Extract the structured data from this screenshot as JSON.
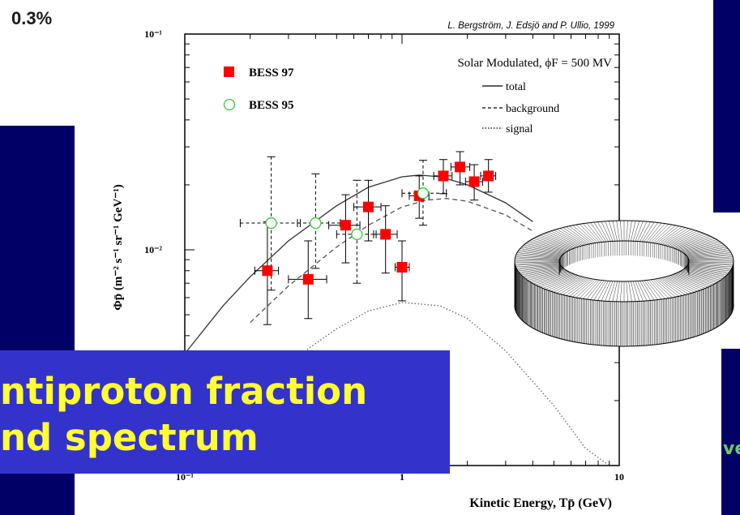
{
  "slide": {
    "top_left_label": "0.3%",
    "title_line_1": "ntiproton fraction",
    "title_line_2": "nd spectrum",
    "bottom_right_fragment": "ve"
  },
  "chart_data": {
    "type": "scatter",
    "citation": "L. Bergström, J. Edsjö and P. Ullio, 1999",
    "annotation": "Solar Modulated, ϕF = 500 MV",
    "ylabel": "Φp̄ (m⁻² s⁻¹ sr⁻¹ GeV⁻¹)",
    "xlabel": "Kinetic Energy, Tp̄ (GeV)",
    "x_scale": "log",
    "y_scale": "log",
    "xlim": [
      0.1,
      10
    ],
    "ylim": [
      0.001,
      0.1
    ],
    "x_ticks": [
      {
        "value": 0.1,
        "label": "10⁻¹"
      },
      {
        "value": 1,
        "label": "1"
      },
      {
        "value": 10,
        "label": "10"
      }
    ],
    "y_ticks": [
      {
        "value": 0.1,
        "label": "10⁻¹"
      },
      {
        "value": 0.01,
        "label": "10⁻²"
      }
    ],
    "legend": {
      "markers": [
        {
          "name": "BESS 97",
          "color": "#ff0000",
          "marker": "filled-square"
        },
        {
          "name": "BESS 95",
          "color": "#33cc33",
          "marker": "open-circle"
        }
      ],
      "lines": [
        {
          "name": "total",
          "style": "solid"
        },
        {
          "name": "background",
          "style": "dashed"
        },
        {
          "name": "signal",
          "style": "dotted"
        }
      ]
    },
    "series": [
      {
        "name": "BESS 97",
        "points": [
          {
            "x": 0.24,
            "y": 0.008,
            "xerr": [
              0.21,
              0.27
            ],
            "yerr": [
              0.0045,
              0.0135
            ]
          },
          {
            "x": 0.37,
            "y": 0.0073,
            "xerr": [
              0.3,
              0.45
            ],
            "yerr": [
              0.0048,
              0.011
            ]
          },
          {
            "x": 0.55,
            "y": 0.013,
            "xerr": [
              0.46,
              0.64
            ],
            "yerr": [
              0.0087,
              0.018
            ]
          },
          {
            "x": 0.7,
            "y": 0.0158,
            "xerr": [
              0.6,
              0.8
            ],
            "yerr": [
              0.011,
              0.021
            ]
          },
          {
            "x": 0.84,
            "y": 0.0118,
            "xerr": [
              0.74,
              0.95
            ],
            "yerr": [
              0.0078,
              0.016
            ]
          },
          {
            "x": 1.0,
            "y": 0.0083,
            "xerr": [
              0.93,
              1.08
            ],
            "yerr": [
              0.0058,
              0.011
            ]
          },
          {
            "x": 1.2,
            "y": 0.0178,
            "xerr": [
              1.08,
              1.33
            ],
            "yerr": [
              0.014,
              0.022
            ]
          },
          {
            "x": 1.55,
            "y": 0.022,
            "xerr": [
              1.4,
              1.7
            ],
            "yerr": [
              0.0182,
              0.0262
            ]
          },
          {
            "x": 1.85,
            "y": 0.0242,
            "xerr": [
              1.68,
              2.05
            ],
            "yerr": [
              0.02,
              0.0285
            ]
          },
          {
            "x": 2.15,
            "y": 0.0207,
            "xerr": [
              1.96,
              2.35
            ],
            "yerr": [
              0.017,
              0.0248
            ]
          },
          {
            "x": 2.5,
            "y": 0.022,
            "xerr": [
              2.3,
              2.7
            ],
            "yerr": [
              0.0185,
              0.0262
            ]
          }
        ]
      },
      {
        "name": "BESS 95",
        "points": [
          {
            "x": 0.25,
            "y": 0.0133,
            "xerr": [
              0.18,
              0.34
            ],
            "yerr": [
              0.0065,
              0.027
            ]
          },
          {
            "x": 0.4,
            "y": 0.0133,
            "xerr": [
              0.33,
              0.52
            ],
            "yerr": [
              0.0082,
              0.0225
            ]
          },
          {
            "x": 0.62,
            "y": 0.0118,
            "xerr": [
              0.5,
              0.76
            ],
            "yerr": [
              0.007,
              0.021
            ]
          },
          {
            "x": 1.25,
            "y": 0.0183,
            "xerr": [
              1.0,
              1.6
            ],
            "yerr": [
              0.013,
              0.026
            ]
          }
        ]
      }
    ],
    "curves": [
      {
        "name": "total",
        "style": "solid",
        "points": [
          [
            0.1,
            0.0033
          ],
          [
            0.15,
            0.0055
          ],
          [
            0.2,
            0.0075
          ],
          [
            0.3,
            0.011
          ],
          [
            0.5,
            0.016
          ],
          [
            0.7,
            0.0195
          ],
          [
            1.0,
            0.0218
          ],
          [
            1.2,
            0.0222
          ],
          [
            1.5,
            0.0218
          ],
          [
            2.0,
            0.02
          ],
          [
            3.0,
            0.0165
          ],
          [
            4.0,
            0.0135
          ]
        ]
      },
      {
        "name": "background",
        "style": "dashed",
        "points": [
          [
            0.2,
            0.0046
          ],
          [
            0.3,
            0.0068
          ],
          [
            0.5,
            0.0103
          ],
          [
            0.7,
            0.013
          ],
          [
            1.0,
            0.0158
          ],
          [
            1.3,
            0.017
          ],
          [
            1.6,
            0.0173
          ],
          [
            2.0,
            0.0168
          ],
          [
            3.0,
            0.0145
          ],
          [
            4.0,
            0.0122
          ]
        ]
      },
      {
        "name": "signal",
        "style": "dotted",
        "points": [
          [
            0.3,
            0.003
          ],
          [
            0.5,
            0.0043
          ],
          [
            0.7,
            0.0052
          ],
          [
            1.0,
            0.0057
          ],
          [
            1.5,
            0.0055
          ],
          [
            2.0,
            0.0048
          ],
          [
            3.0,
            0.0034
          ],
          [
            5.0,
            0.0019
          ],
          [
            7.0,
            0.0012
          ],
          [
            9.0,
            0.001
          ]
        ]
      }
    ]
  }
}
